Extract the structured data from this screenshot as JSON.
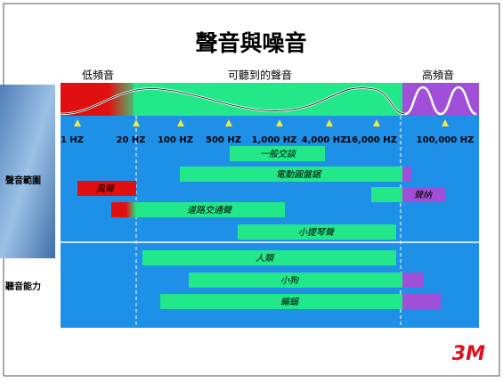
{
  "title": "聲音與噪音",
  "zones": [
    "低頻音",
    "可聽到的聲音",
    "高頻音"
  ],
  "frequencies": [
    "1 HZ",
    "20 HZ",
    "100 HZ",
    "500 HZ",
    "1,000 HZ",
    "4,000 HZ",
    "16,000 HZ",
    "100,000 HZ"
  ],
  "sections": [
    "聲音範圍",
    "聽音能力"
  ],
  "sound_ranges": [
    "一般交談",
    "電動圓盤鋸",
    "風聲",
    "聲納",
    "道路交通聲",
    "小提琴聲"
  ],
  "hearing_ranges": [
    "人類",
    "小狗",
    "蝙蝠"
  ],
  "logo": "3M"
}
